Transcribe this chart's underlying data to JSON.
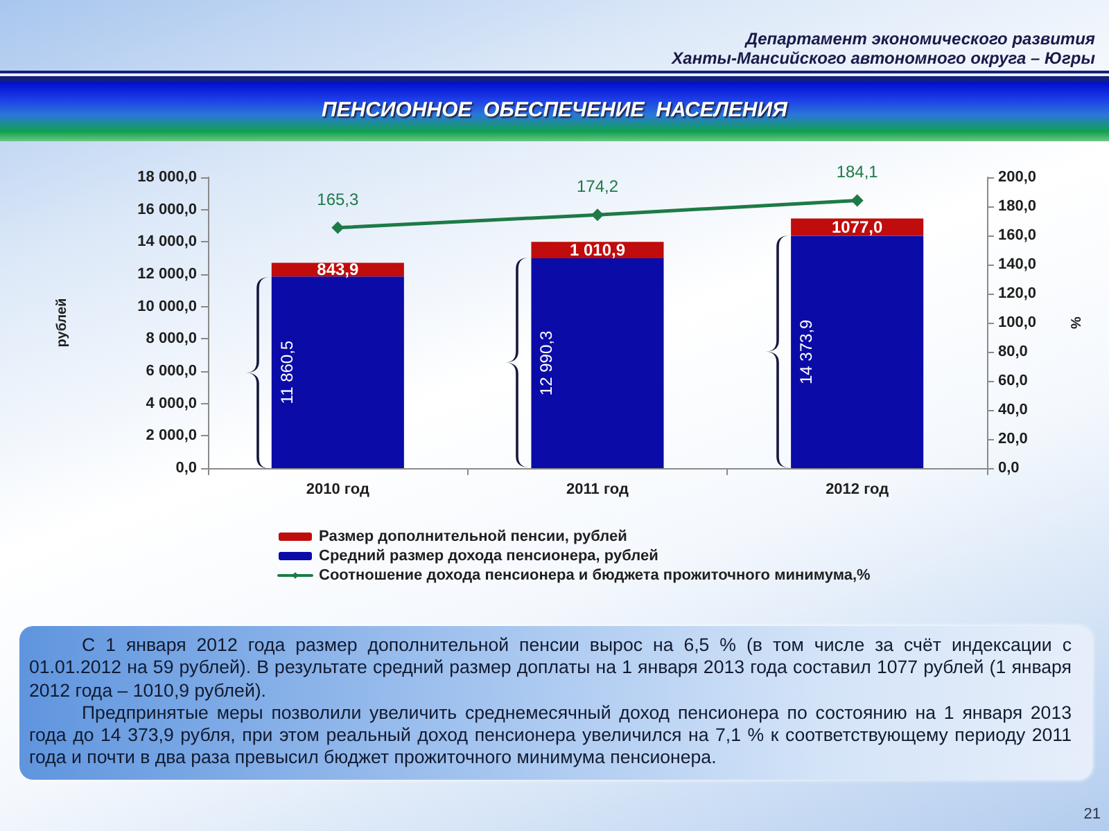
{
  "chart_data": {
    "type": "bar",
    "title": "ПЕНСИОННОЕ  ОБЕСПЕЧЕНИЕ  НАСЕЛЕНИЯ",
    "subtitle": "Департамент экономического развития\nХанты-Мансийского автономного округа – Югры",
    "ylabel": "рублей",
    "y2label": "%",
    "categories": [
      "2010 год",
      "2011 год",
      "2012 год"
    ],
    "stacked": true,
    "series": [
      {
        "name": "Средний размер дохода пенсионера, рублей",
        "color": "#0b0ba8",
        "values": [
          11860.5,
          12990.3,
          14373.9
        ],
        "value_labels": [
          "11 860,5",
          "12 990,3",
          "14 373,9"
        ]
      },
      {
        "name": "Размер дополнительной пенсии, рублей",
        "color": "#c00c0c",
        "values": [
          843.9,
          1010.9,
          1077.0
        ],
        "value_labels": [
          "843,9",
          "1 010,9",
          "1077,0"
        ]
      },
      {
        "type": "line",
        "axis": "y2",
        "name": "Соотношение дохода пенсионера и бюджета прожиточного минимума,%",
        "color": "#1e7a46",
        "values": [
          165.3,
          174.2,
          184.1
        ],
        "value_labels": [
          "165,3",
          "174,2",
          "184,1"
        ],
        "marker": "diamond"
      }
    ],
    "ylim": [
      0,
      18000
    ],
    "yticks": [
      {
        "value": 0,
        "label": "0,0"
      },
      {
        "value": 2000,
        "label": "2 000,0"
      },
      {
        "value": 4000,
        "label": "4 000,0"
      },
      {
        "value": 6000,
        "label": "6 000,0"
      },
      {
        "value": 8000,
        "label": "8 000,0"
      },
      {
        "value": 10000,
        "label": "10 000,0"
      },
      {
        "value": 12000,
        "label": "12 000,0"
      },
      {
        "value": 14000,
        "label": "14 000,0"
      },
      {
        "value": 16000,
        "label": "16 000,0"
      },
      {
        "value": 18000,
        "label": "18 000,0"
      }
    ],
    "y2lim": [
      0,
      200
    ],
    "y2ticks": [
      {
        "value": 0,
        "label": "0,0"
      },
      {
        "value": 20,
        "label": "20,0"
      },
      {
        "value": 40,
        "label": "40,0"
      },
      {
        "value": 60,
        "label": "60,0"
      },
      {
        "value": 80,
        "label": "80,0"
      },
      {
        "value": 100,
        "label": "100,0"
      },
      {
        "value": 120,
        "label": "120,0"
      },
      {
        "value": 140,
        "label": "140,0"
      },
      {
        "value": 160,
        "label": "160,0"
      },
      {
        "value": 180,
        "label": "180,0"
      },
      {
        "value": 200,
        "label": "200,0"
      }
    ],
    "legend": "bottom",
    "annotations": [
      "С 1 января 2012 года размер дополнительной пенсии вырос на 6,5 % (в том числе за счёт индексации с 01.01.2012 на 59 рублей). В результате средний размер доплаты на 1 января 2013 года составил 1077 рублей (1 января 2012 года – 1010,9 рублей).",
      "Предпринятые меры позволили увеличить среднемесячный доход пенсионера по состоянию на 1 января 2013 года до 14 373,9 рубля, при этом реальный доход пенсионера увеличился на 7,1 % к соответствующему периоду 2011 года и почти в два раза превысил бюджет прожиточного минимума пенсионера.",
      "21"
    ]
  }
}
